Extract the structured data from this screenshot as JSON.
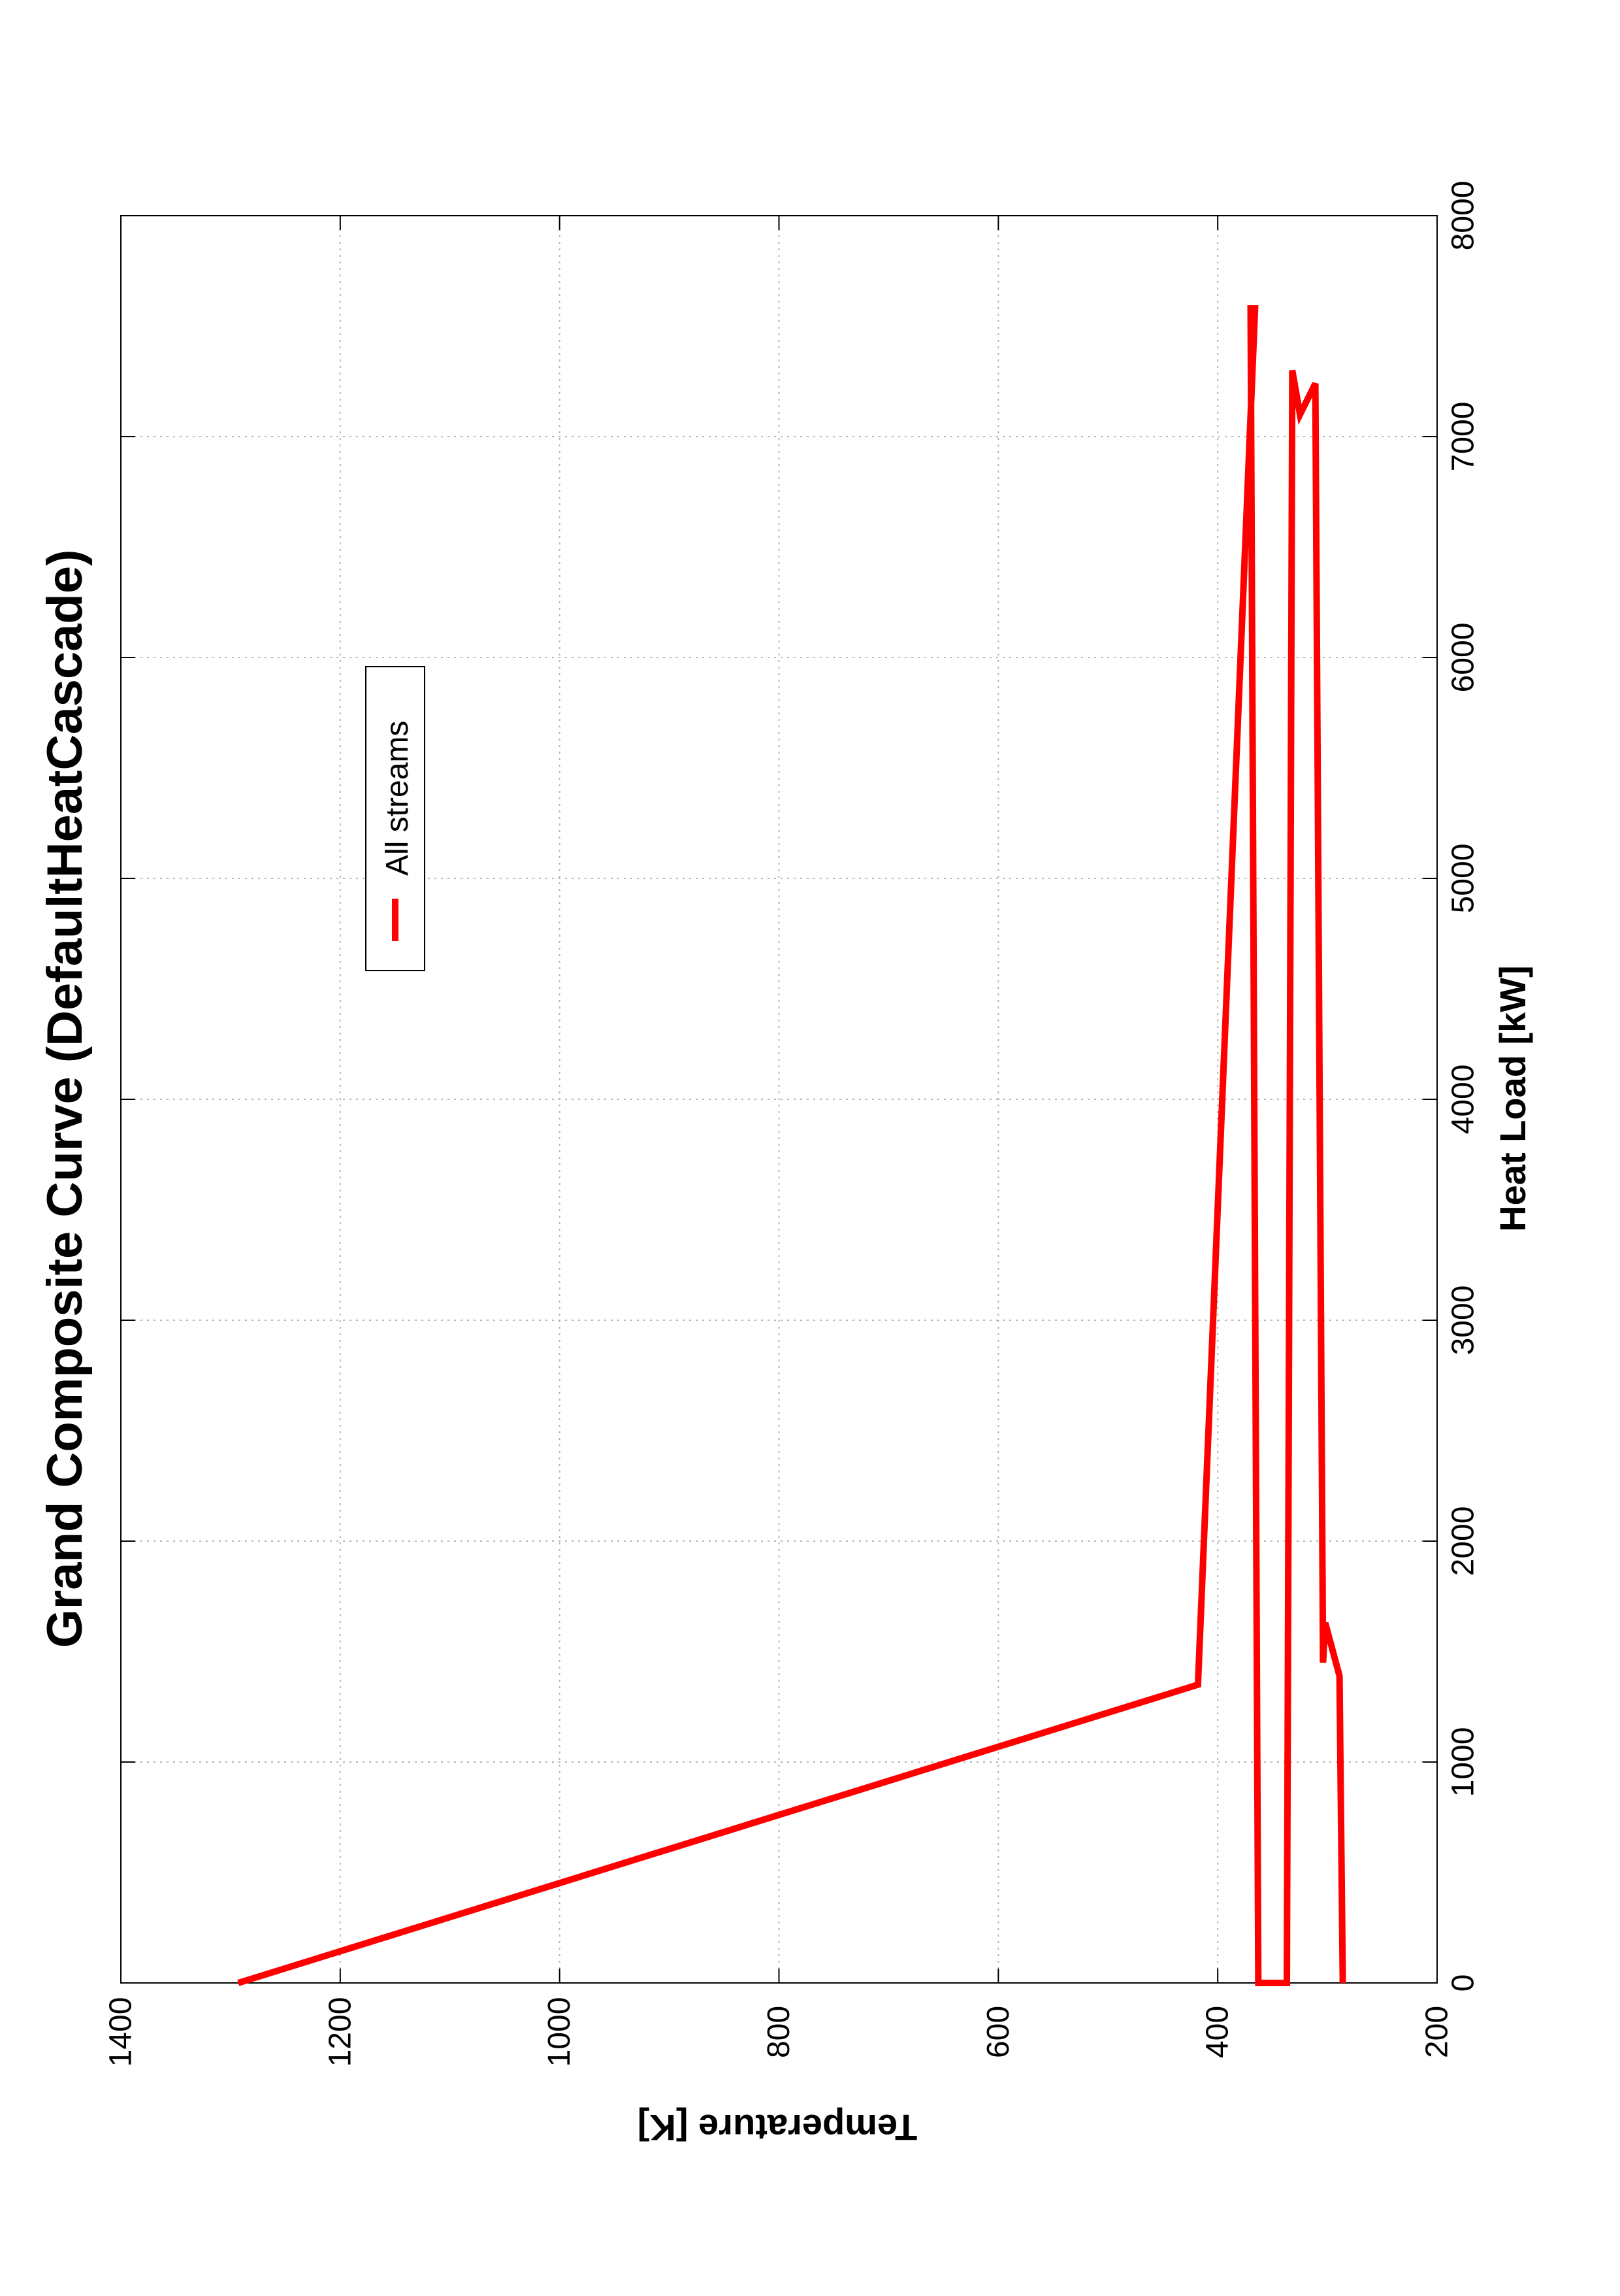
{
  "chart_data": {
    "type": "line",
    "orientation": "rotated-90-clockwise",
    "title": "Grand Composite Curve (DefaultHeatCascade)",
    "xlabel": "Heat Load [kW]",
    "ylabel": "Temperature [K]",
    "xlim": [
      0,
      8000
    ],
    "ylim": [
      200,
      1400
    ],
    "xticks": [
      "0",
      "1000",
      "2000",
      "3000",
      "4000",
      "5000",
      "6000",
      "7000",
      "8000"
    ],
    "yticks": [
      "200",
      "400",
      "600",
      "800",
      "1000",
      "1200",
      "1400"
    ],
    "grid": true,
    "legend_position": "upper-left",
    "series": [
      {
        "name": "All streams",
        "color": "#ff0000",
        "points": [
          [
            0,
            1293
          ],
          [
            1350,
            418
          ],
          [
            7580,
            366
          ],
          [
            7580,
            370
          ],
          [
            0,
            363
          ],
          [
            0,
            337
          ],
          [
            7300,
            332
          ],
          [
            7100,
            325
          ],
          [
            7240,
            311
          ],
          [
            1450,
            304
          ],
          [
            1630,
            302
          ],
          [
            1390,
            289
          ],
          [
            0,
            286
          ]
        ]
      }
    ]
  }
}
